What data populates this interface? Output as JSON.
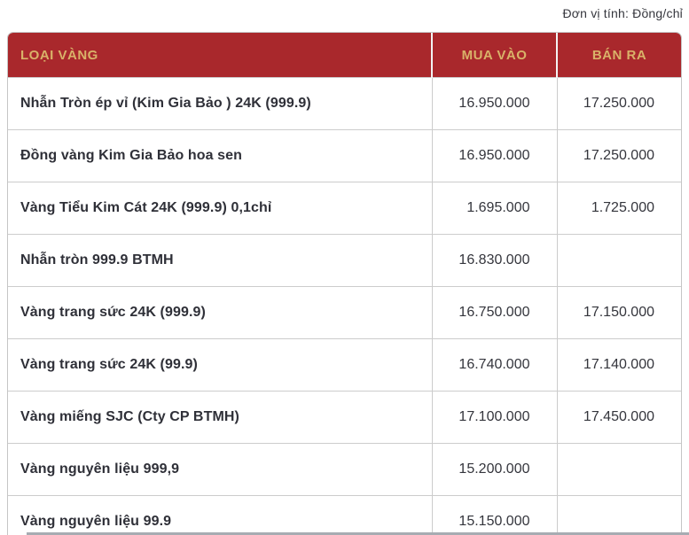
{
  "unit_note": "Đơn vị tính: Đồng/chỉ",
  "colors": {
    "header_bg": "#a9282c",
    "header_text": "#d9b269",
    "body_text": "#2f3038",
    "border": "#cccccc",
    "bottom_strip": "#a7acb2"
  },
  "table": {
    "columns": [
      {
        "key": "name",
        "label": "LOẠI VÀNG"
      },
      {
        "key": "buy",
        "label": "MUA VÀO"
      },
      {
        "key": "sell",
        "label": "BÁN RA"
      }
    ],
    "rows": [
      {
        "name": "Nhẫn Tròn ép vỉ (Kim Gia Bảo ) 24K (999.9)",
        "buy": "16.950.000",
        "sell": "17.250.000"
      },
      {
        "name": "Đồng vàng Kim Gia Bảo hoa sen",
        "buy": "16.950.000",
        "sell": "17.250.000"
      },
      {
        "name": "Vàng Tiểu Kim Cát 24K (999.9) 0,1chỉ",
        "buy": "1.695.000",
        "sell": "1.725.000"
      },
      {
        "name": "Nhẫn tròn 999.9 BTMH",
        "buy": "16.830.000",
        "sell": ""
      },
      {
        "name": "Vàng trang sức 24K (999.9)",
        "buy": "16.750.000",
        "sell": "17.150.000"
      },
      {
        "name": "Vàng trang sức 24K (99.9)",
        "buy": "16.740.000",
        "sell": "17.140.000"
      },
      {
        "name": "Vàng miếng SJC (Cty CP BTMH)",
        "buy": "17.100.000",
        "sell": "17.450.000"
      },
      {
        "name": "Vàng nguyên liệu 999,9",
        "buy": "15.200.000",
        "sell": ""
      },
      {
        "name": "Vàng nguyên liệu 99.9",
        "buy": "15.150.000",
        "sell": ""
      }
    ]
  }
}
